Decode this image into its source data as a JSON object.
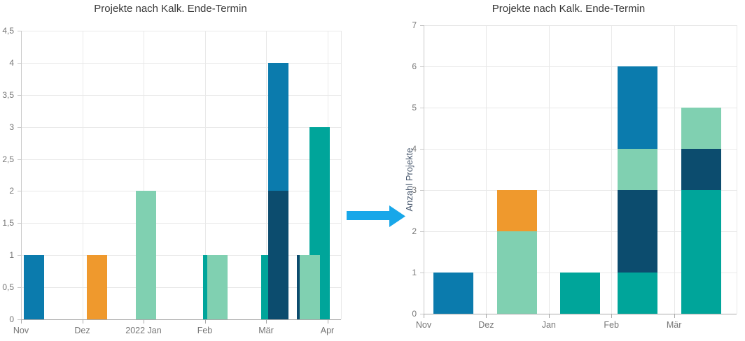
{
  "palette": {
    "blue": "#0b7bad",
    "navy": "#0c4c6e",
    "teal": "#00a59a",
    "mint": "#80d0b1",
    "orange": "#ef992d",
    "arrow_blue": "#18a7e9",
    "gridline": "#e9e9e9",
    "tick_label": "#767676",
    "title_text": "#3a3a3a",
    "axis_title_text": "#44546a"
  },
  "arrow": {
    "direction": "right",
    "color": "#18a7e9"
  },
  "chart_data": [
    {
      "type": "bar",
      "variant": "overlapping",
      "title": "Projekte nach Kalk. Ende-Termin",
      "xlabel": "",
      "ylabel": "",
      "ylim": [
        0,
        4.5
      ],
      "y_tick_step": 0.5,
      "y_tick_labels": [
        "0",
        "0,5",
        "1",
        "1,5",
        "2",
        "2,5",
        "3",
        "3,5",
        "4",
        "4,5"
      ],
      "x_tick_labels": [
        "Nov",
        "Dez",
        "2022 Jan",
        "Feb",
        "Mär",
        "Apr"
      ],
      "grid": true,
      "legend": false,
      "bars": [
        {
          "category": "Nov",
          "color": "blue",
          "value": 1
        },
        {
          "category": "Dez",
          "color": "orange",
          "value": 1
        },
        {
          "category": "2022 Jan",
          "color": "mint",
          "value": 2
        },
        {
          "category": "Feb",
          "color": "teal",
          "value": 1
        },
        {
          "category": "Feb",
          "color": "mint",
          "value": 1
        },
        {
          "category": "Mär",
          "color": "teal",
          "value": 1
        },
        {
          "category": "Mär",
          "color": "blue",
          "value": 4
        },
        {
          "category": "Mär",
          "color": "navy",
          "value": 2
        },
        {
          "category": "Apr",
          "color": "navy",
          "value": 1
        },
        {
          "category": "Apr",
          "color": "teal",
          "value": 3
        },
        {
          "category": "Apr",
          "color": "mint",
          "value": 1
        }
      ]
    },
    {
      "type": "bar",
      "variant": "stacked",
      "title": "Projekte nach Kalk. Ende-Termin",
      "xlabel": "",
      "ylabel": "Anzahl Projekte",
      "ylim": [
        0,
        7
      ],
      "y_tick_step": 1,
      "y_tick_labels": [
        "0",
        "1",
        "2",
        "3",
        "4",
        "5",
        "6",
        "7"
      ],
      "x_tick_labels": [
        "Nov",
        "Dez",
        "Jan",
        "Feb",
        "Mär"
      ],
      "grid": true,
      "legend": false,
      "stacks": [
        {
          "category": "Nov",
          "total": 1,
          "segments": [
            {
              "color": "blue",
              "value": 1
            }
          ]
        },
        {
          "category": "Dez",
          "total": 3,
          "segments": [
            {
              "color": "mint",
              "value": 2
            },
            {
              "color": "orange",
              "value": 1
            }
          ]
        },
        {
          "category": "Jan",
          "total": 1,
          "segments": [
            {
              "color": "teal",
              "value": 1
            }
          ]
        },
        {
          "category": "Feb",
          "total": 6,
          "segments": [
            {
              "color": "teal",
              "value": 1
            },
            {
              "color": "navy",
              "value": 2
            },
            {
              "color": "mint",
              "value": 1
            },
            {
              "color": "blue",
              "value": 2
            }
          ]
        },
        {
          "category": "Mär",
          "total": 5,
          "segments": [
            {
              "color": "teal",
              "value": 3
            },
            {
              "color": "navy",
              "value": 1
            },
            {
              "color": "mint",
              "value": 1
            }
          ]
        }
      ]
    }
  ]
}
